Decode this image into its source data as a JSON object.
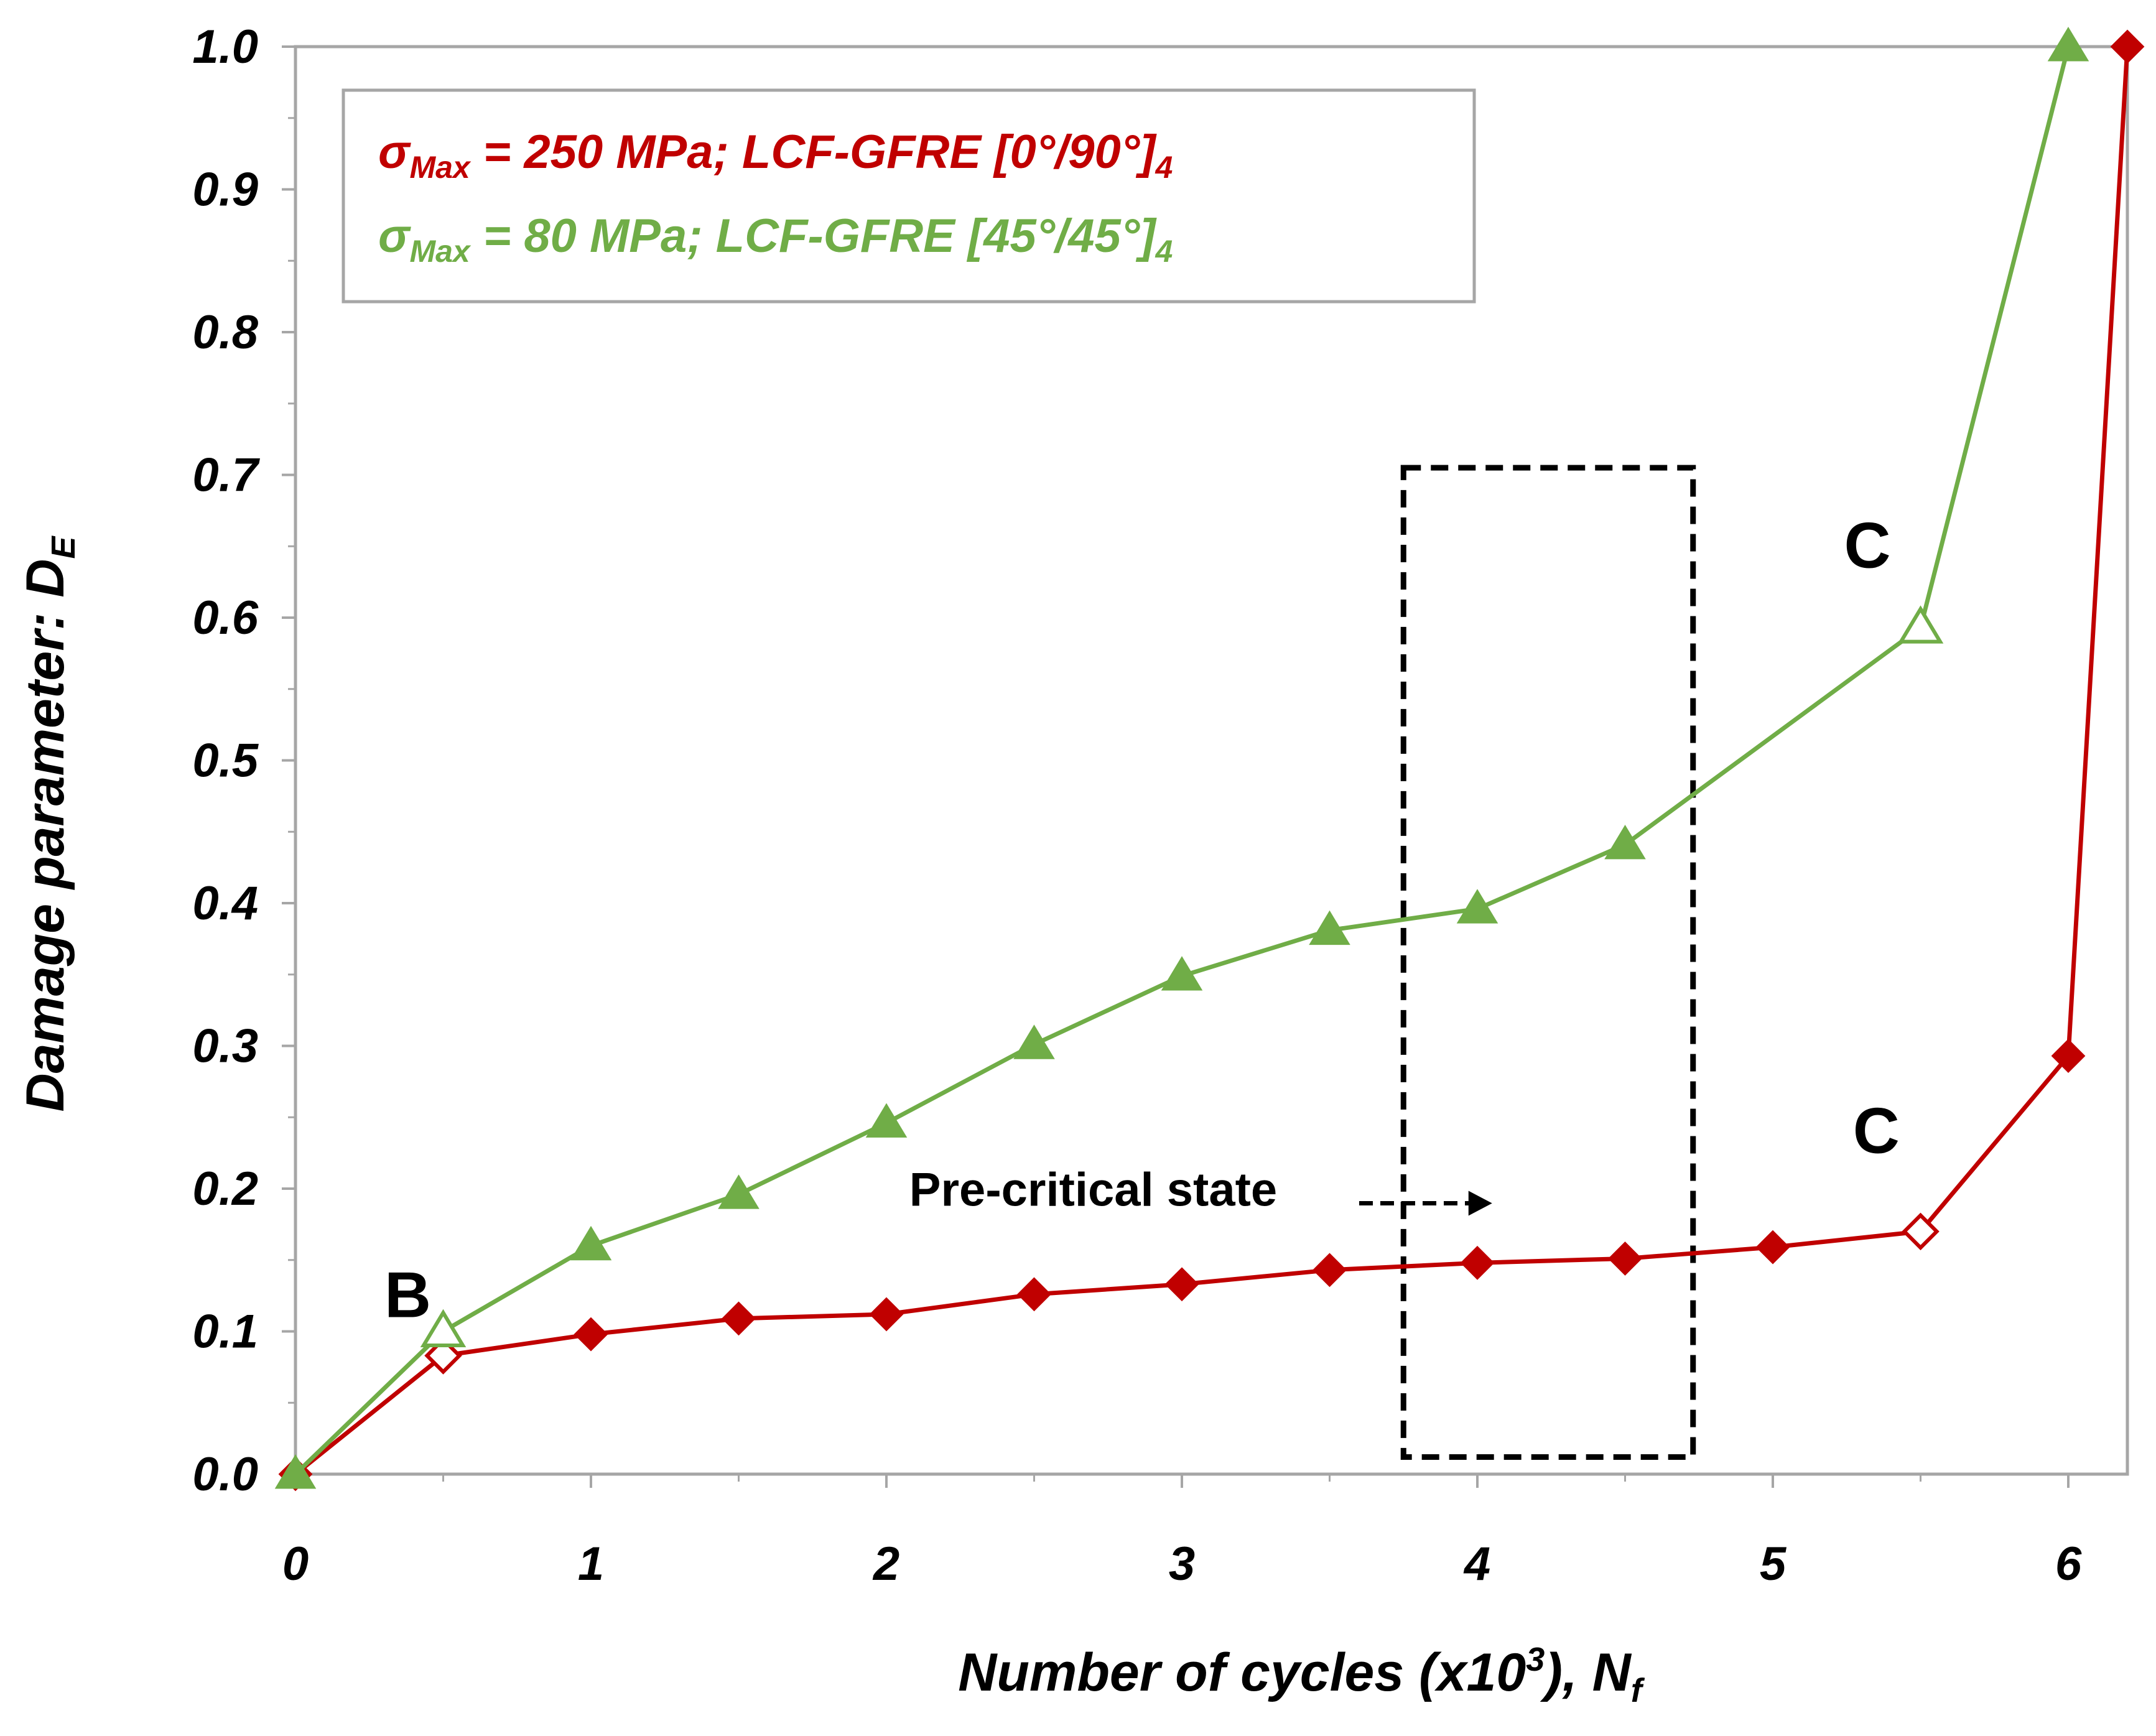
{
  "colors": {
    "red": "#C00000",
    "green": "#70AD47",
    "frame": "#A6A6A6",
    "black": "#000000"
  },
  "chart_data": {
    "type": "line",
    "xlabel": "Number of cycles (x10",
    "xlabel_sup": "3",
    "xlabel_tail": "), N",
    "xlabel_sub": "f",
    "ylabel": "Damage parameter: D",
    "ylabel_sub": "E",
    "xlim": [
      0,
      6.2
    ],
    "ylim": [
      0,
      1.0
    ],
    "x_ticks": [
      "0",
      "1",
      "2",
      "3",
      "4",
      "5",
      "6"
    ],
    "y_ticks": [
      "0.0",
      "0.1",
      "0.2",
      "0.3",
      "0.4",
      "0.5",
      "0.6",
      "0.7",
      "0.8",
      "0.9",
      "1.0"
    ],
    "grid": false,
    "legend_position": "top-left",
    "series": [
      {
        "name": "red",
        "legend": {
          "sym": "σ",
          "sub": "Max",
          "text": " = 250 MPa;  LCF-GFRE [0°/90°]",
          "tail_sub": "4"
        },
        "marker": "diamond",
        "color": "#C00000",
        "x": [
          0,
          0.5,
          1.0,
          1.5,
          2.0,
          2.5,
          3.0,
          3.5,
          4.0,
          4.5,
          5.0,
          5.5,
          6.0,
          6.2
        ],
        "y": [
          0.0,
          0.083,
          0.098,
          0.109,
          0.112,
          0.126,
          0.133,
          0.143,
          0.148,
          0.151,
          0.159,
          0.17,
          0.293,
          1.0
        ],
        "hollow_indices": [
          1,
          11
        ]
      },
      {
        "name": "green",
        "legend": {
          "sym": "σ",
          "sub": "Max",
          "text": " = 80 MPa;  LCF-GFRE [45°/45°]",
          "tail_sub": "4"
        },
        "marker": "triangle",
        "color": "#70AD47",
        "x": [
          0,
          0.5,
          1.0,
          1.5,
          2.0,
          2.5,
          3.0,
          3.5,
          4.0,
          4.5,
          5.5,
          6.0
        ],
        "y": [
          0.0,
          0.1,
          0.16,
          0.196,
          0.246,
          0.301,
          0.349,
          0.381,
          0.396,
          0.441,
          0.593,
          1.0
        ],
        "hollow_indices": [
          1,
          10
        ]
      }
    ],
    "annotations": {
      "B": {
        "text": "B",
        "x": 0.38,
        "y": 0.11
      },
      "C_green": {
        "text": "C",
        "x": 5.32,
        "y": 0.635
      },
      "C_red": {
        "text": "C",
        "x": 5.35,
        "y": 0.225
      },
      "precritical": {
        "text": "Pre-critical state",
        "x": 2.7,
        "y": 0.188
      }
    },
    "dashed_box": {
      "x0": 3.75,
      "x1": 4.73,
      "y0": 0.012,
      "y1": 0.705
    },
    "dashed_arrow": {
      "x0": 3.6,
      "x1": 4.05,
      "y": 0.188
    }
  }
}
